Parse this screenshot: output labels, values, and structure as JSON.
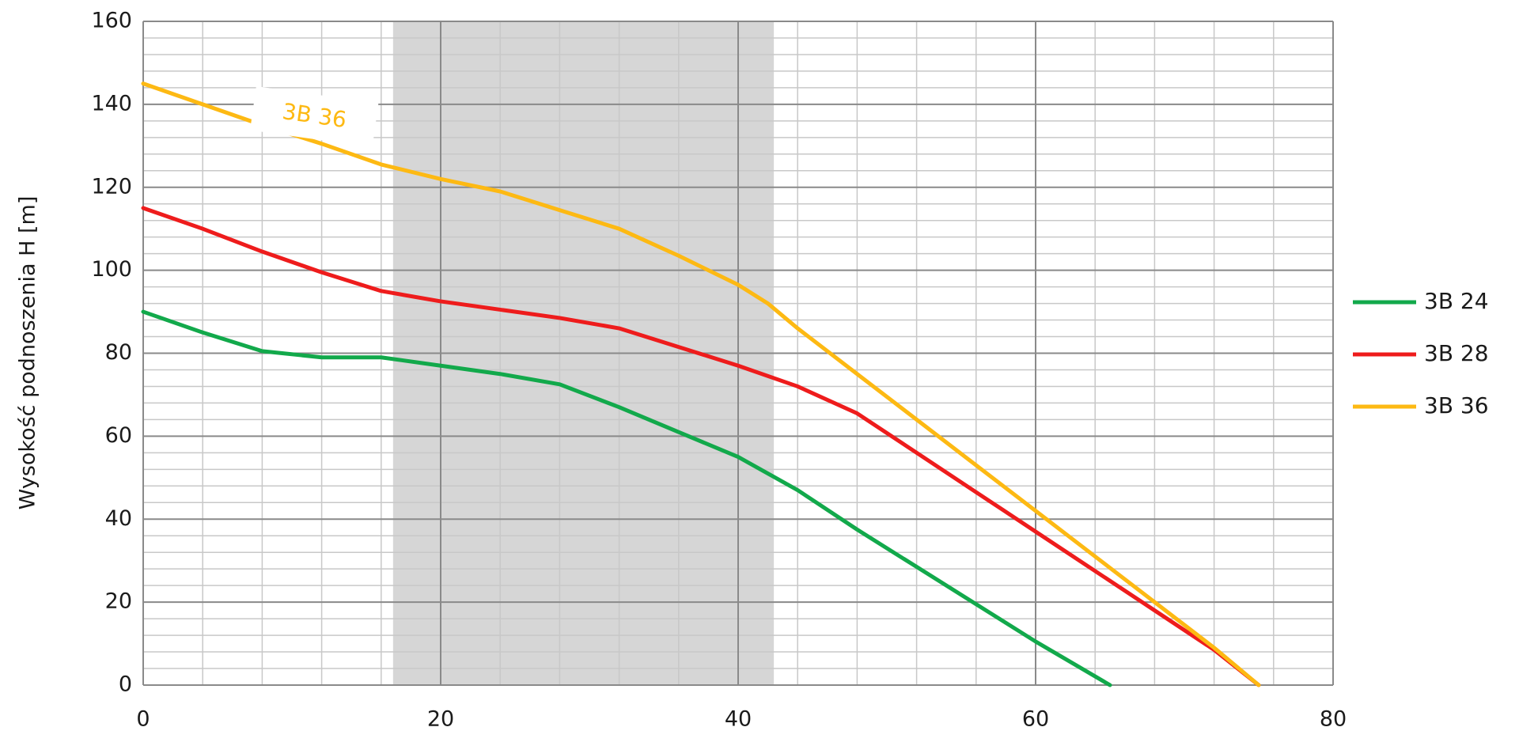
{
  "chart_data": {
    "type": "line",
    "ylabel": "Wysokość podnoszenia H [m]",
    "xlim": [
      0,
      80
    ],
    "xticks": [
      0,
      20,
      40,
      60,
      80
    ],
    "ylim": [
      0,
      160
    ],
    "yticks": [
      0,
      20,
      40,
      60,
      80,
      100,
      120,
      140,
      160
    ],
    "grid": true,
    "minor_step": 4,
    "legend": "right",
    "shaded_range": [
      16.8,
      42.4
    ],
    "shaded_color": "#d6d6d6",
    "series": [
      {
        "name": "3B 24",
        "color": "#12a94b",
        "x": [
          0,
          4,
          8,
          12,
          16,
          20,
          24,
          28,
          32,
          36,
          40,
          44,
          48,
          52,
          56,
          60,
          65
        ],
        "values": [
          90,
          85,
          80.5,
          79,
          79,
          77,
          75,
          72.5,
          67,
          61,
          55,
          47,
          37.5,
          28.5,
          19.5,
          10.5,
          0
        ]
      },
      {
        "name": "3B 28",
        "color": "#ee1c1c",
        "x": [
          0,
          4,
          8,
          12,
          16,
          20,
          24,
          28,
          32,
          36,
          40,
          44,
          48,
          52,
          56,
          60,
          64,
          68,
          72,
          75
        ],
        "values": [
          115,
          110,
          104.5,
          99.5,
          95,
          92.5,
          90.5,
          88.5,
          86,
          81.5,
          77,
          72,
          65.5,
          56,
          46.5,
          37,
          27.5,
          18,
          8.5,
          0
        ]
      },
      {
        "name": "3B 36",
        "color": "#fdb913",
        "x": [
          0,
          4,
          8,
          12,
          16,
          20,
          24,
          28,
          32,
          36,
          40,
          42,
          44,
          48,
          52,
          56,
          60,
          64,
          68,
          72,
          75
        ],
        "values": [
          145,
          140,
          135,
          130.5,
          125.5,
          122,
          119,
          114.5,
          110,
          103.5,
          96.5,
          92,
          86,
          75,
          64,
          53,
          42,
          31,
          20,
          9,
          0
        ]
      }
    ],
    "annotations": [
      {
        "text": "3B 36",
        "x": 11.5,
        "y": 137,
        "color": "#fdb913"
      }
    ]
  }
}
